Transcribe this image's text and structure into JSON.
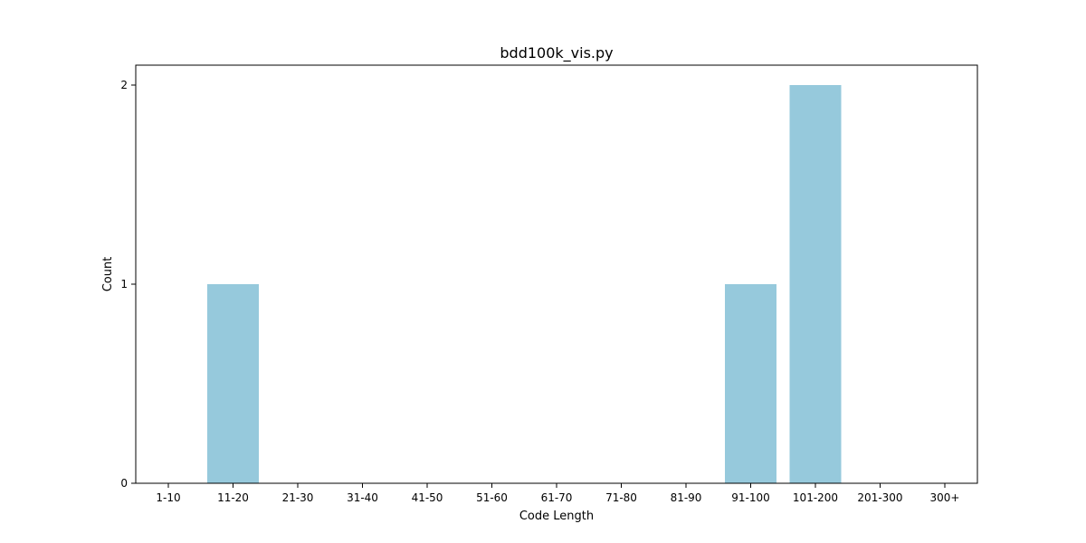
{
  "chart_data": {
    "type": "bar",
    "title": "bdd100k_vis.py",
    "xlabel": "Code Length",
    "ylabel": "Count",
    "categories": [
      "1-10",
      "11-20",
      "21-30",
      "31-40",
      "41-50",
      "51-60",
      "61-70",
      "71-80",
      "81-90",
      "91-100",
      "101-200",
      "201-300",
      "300+"
    ],
    "values": [
      0,
      1,
      0,
      0,
      0,
      0,
      0,
      0,
      0,
      1,
      2,
      0,
      0
    ],
    "yticks": [
      0,
      1,
      2
    ],
    "ylim": [
      0,
      2.1
    ],
    "bar_color": "#96c9dc",
    "grid": false,
    "legend": false
  }
}
